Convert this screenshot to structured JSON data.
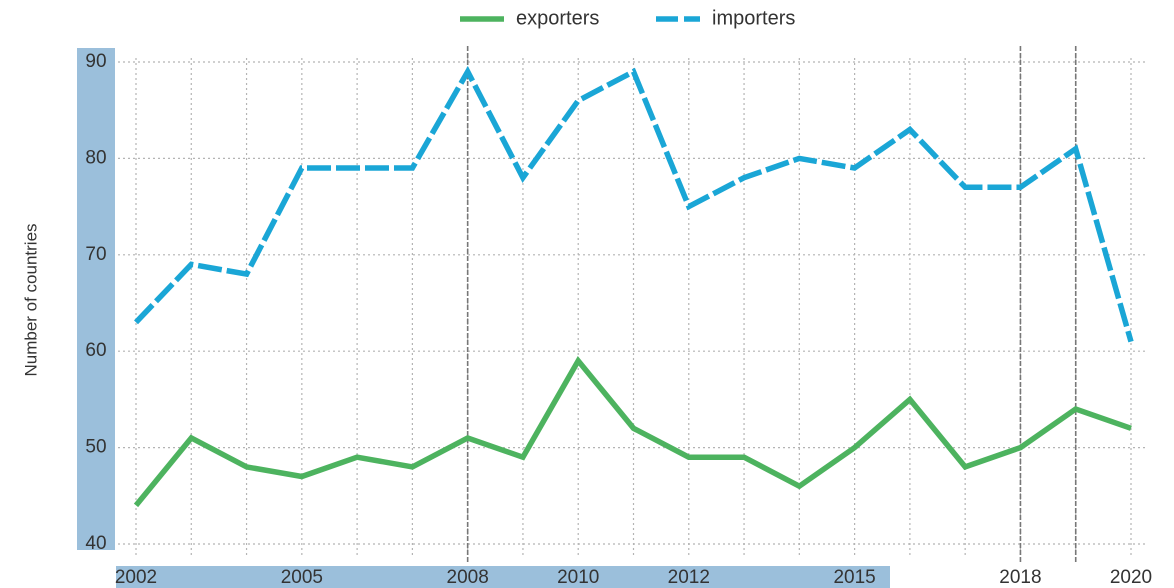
{
  "chart_data": {
    "type": "line",
    "title": "",
    "xlabel": "",
    "ylabel": "Number of countries",
    "x": [
      2002,
      2003,
      2004,
      2005,
      2006,
      2007,
      2008,
      2009,
      2010,
      2011,
      2012,
      2013,
      2014,
      2015,
      2016,
      2017,
      2018,
      2019,
      2020
    ],
    "x_tick_labels": [
      "2002",
      "2005",
      "2008",
      "2010",
      "2012",
      "2015",
      "2018",
      "2020"
    ],
    "x_tick_values": [
      2002,
      2005,
      2008,
      2010,
      2012,
      2015,
      2018,
      2020
    ],
    "y_ticks": [
      40,
      50,
      60,
      70,
      80,
      90
    ],
    "xlim": [
      2002,
      2020
    ],
    "ylim": [
      40,
      90
    ],
    "grid": true,
    "legend_position": "top-center",
    "reference_lines_x": [
      2008,
      2018,
      2019
    ],
    "series": [
      {
        "name": "exporters",
        "color": "#4db35f",
        "style": "solid",
        "values": [
          44,
          51,
          48,
          47,
          49,
          48,
          51,
          49,
          59,
          52,
          49,
          49,
          46,
          50,
          55,
          48,
          50,
          54,
          52
        ]
      },
      {
        "name": "importers",
        "color": "#1aa6d6",
        "style": "dashed",
        "values": [
          63,
          69,
          68,
          79,
          79,
          79,
          89,
          78,
          86,
          89,
          75,
          78,
          80,
          79,
          83,
          77,
          77,
          81,
          61
        ]
      }
    ],
    "colors": {
      "axis_band": "#9bbfdb",
      "grid": "#b4b4b4",
      "reference_line": "#777777",
      "text": "#333333"
    }
  }
}
